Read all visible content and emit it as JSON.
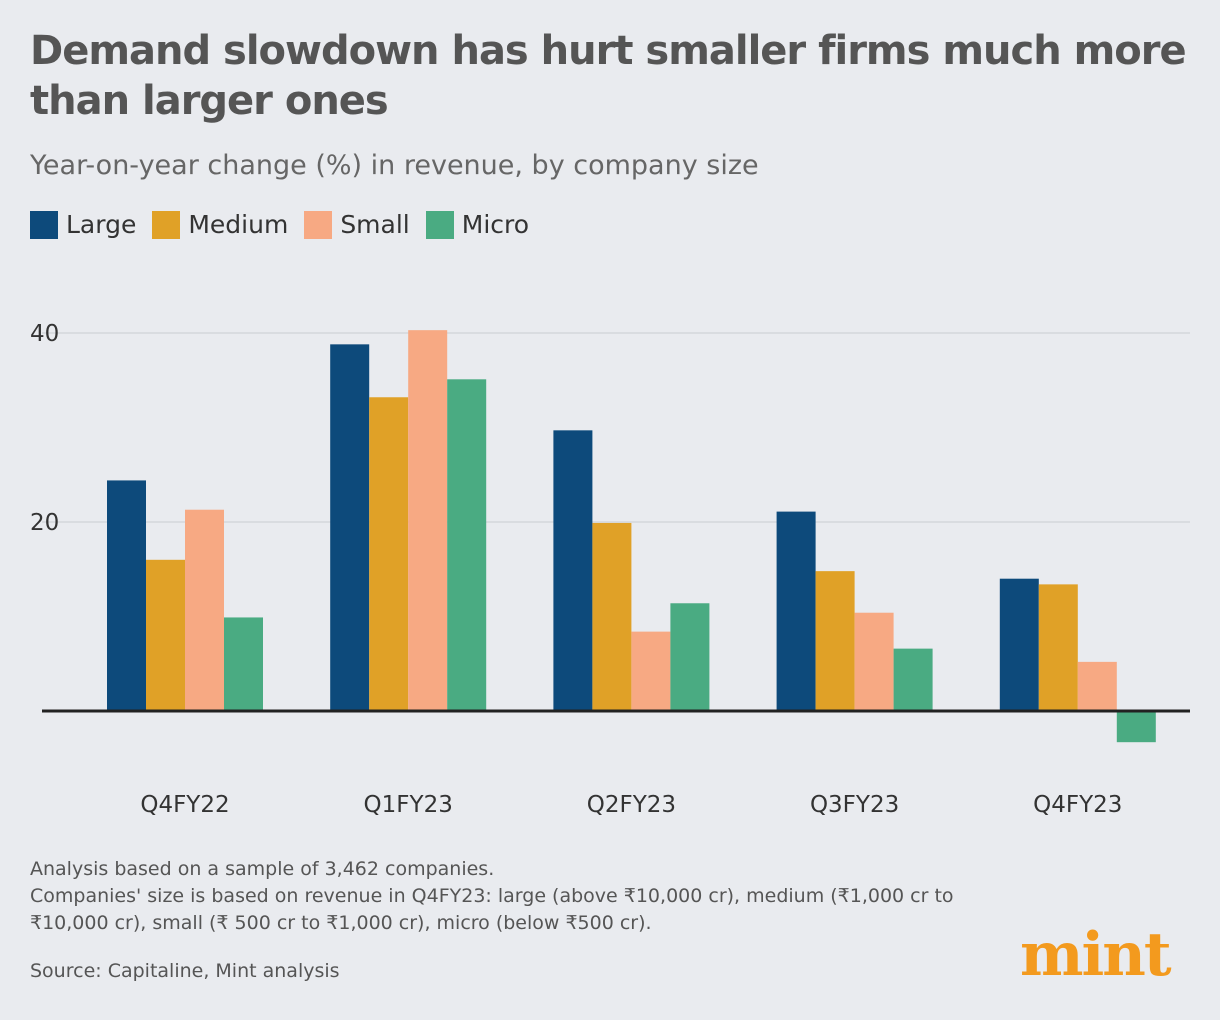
{
  "chart_data": {
    "type": "bar",
    "title": "Demand slowdown has hurt smaller firms much more than larger ones",
    "subtitle": "Year-on-year change (%) in revenue, by company size",
    "categories": [
      "Q4FY22",
      "Q1FY23",
      "Q2FY23",
      "Q3FY23",
      "Q4FY23"
    ],
    "series": [
      {
        "name": "Large",
        "color": "#0d4a7b",
        "values": [
          24.4,
          38.8,
          29.7,
          21.1,
          14.0
        ]
      },
      {
        "name": "Medium",
        "color": "#e0a127",
        "values": [
          16.0,
          33.2,
          19.9,
          14.8,
          13.4
        ]
      },
      {
        "name": "Small",
        "color": "#f7a983",
        "values": [
          21.3,
          40.3,
          8.4,
          10.4,
          5.2
        ]
      },
      {
        "name": "Micro",
        "color": "#4aab82",
        "values": [
          9.9,
          35.1,
          11.4,
          6.6,
          -3.3
        ]
      }
    ],
    "yticks": [
      20,
      40
    ],
    "ylim": [
      -5,
      45
    ],
    "grid": true,
    "legend": "top-left"
  },
  "notes": [
    "Analysis based on a sample of 3,462 companies.",
    "Companies' size is based on revenue in Q4FY23: large (above ₹10,000 cr), medium (₹1,000 cr to ₹10,000 cr), small (₹ 500 cr to ₹1,000 cr), micro (below ₹500 cr)."
  ],
  "source": "Source: Capitaline, Mint analysis",
  "logo_text": "mint"
}
